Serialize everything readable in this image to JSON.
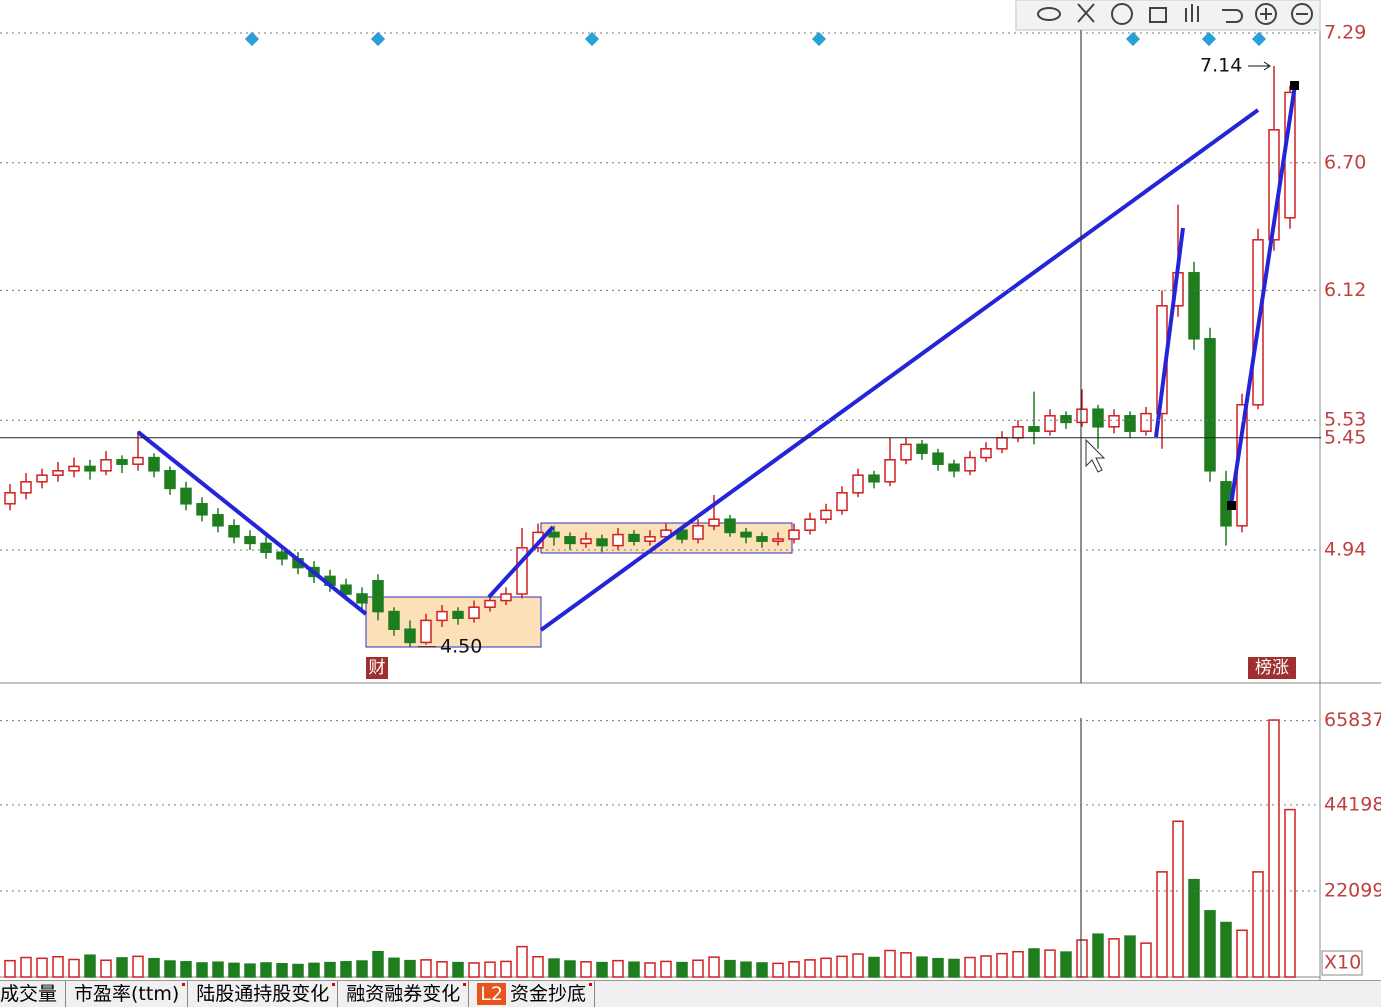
{
  "chart_data": {
    "type": "candlestick",
    "open": [
      5.15,
      5.2,
      5.25,
      5.28,
      5.3,
      5.32,
      5.3,
      5.35,
      5.33,
      5.36,
      5.3,
      5.22,
      5.15,
      5.1,
      5.05,
      5.0,
      4.97,
      4.93,
      4.9,
      4.86,
      4.82,
      4.78,
      4.74,
      4.8,
      4.66,
      4.58,
      4.52,
      4.62,
      4.66,
      4.63,
      4.68,
      4.71,
      4.74,
      4.95,
      5.02,
      5.0,
      4.97,
      4.99,
      4.96,
      5.01,
      4.98,
      5.0,
      5.03,
      4.99,
      5.05,
      5.08,
      5.02,
      5.0,
      4.98,
      4.99,
      5.03,
      5.08,
      5.12,
      5.2,
      5.28,
      5.25,
      5.35,
      5.42,
      5.38,
      5.33,
      5.3,
      5.36,
      5.4,
      5.45,
      5.5,
      5.48,
      5.55,
      5.52,
      5.58,
      5.5,
      5.55,
      5.48,
      5.56,
      6.05,
      6.2,
      5.9,
      5.25,
      5.05,
      5.6,
      6.35,
      6.45
    ],
    "high": [
      5.24,
      5.29,
      5.31,
      5.34,
      5.36,
      5.35,
      5.39,
      5.37,
      5.48,
      5.38,
      5.32,
      5.25,
      5.18,
      5.13,
      5.08,
      5.03,
      5.0,
      4.96,
      4.93,
      4.89,
      4.85,
      4.81,
      4.77,
      4.83,
      4.68,
      4.62,
      4.65,
      4.69,
      4.68,
      4.71,
      4.74,
      4.77,
      5.04,
      5.06,
      5.05,
      5.02,
      5.02,
      5.01,
      5.04,
      5.03,
      5.03,
      5.06,
      5.05,
      5.08,
      5.19,
      5.1,
      5.04,
      5.02,
      5.02,
      5.06,
      5.11,
      5.15,
      5.23,
      5.31,
      5.3,
      5.45,
      5.45,
      5.44,
      5.4,
      5.35,
      5.39,
      5.43,
      5.48,
      5.53,
      5.66,
      5.58,
      5.57,
      5.67,
      5.6,
      5.58,
      5.57,
      5.59,
      6.12,
      6.51,
      6.25,
      5.95,
      5.3,
      5.65,
      6.4,
      7.14,
      7.05
    ],
    "low": [
      5.12,
      5.17,
      5.22,
      5.25,
      5.27,
      5.26,
      5.28,
      5.29,
      5.3,
      5.27,
      5.19,
      5.12,
      5.07,
      5.02,
      4.97,
      4.94,
      4.9,
      4.87,
      4.83,
      4.79,
      4.75,
      4.71,
      4.67,
      4.62,
      4.55,
      4.5,
      4.51,
      4.59,
      4.6,
      4.61,
      4.66,
      4.69,
      4.72,
      4.93,
      4.96,
      4.94,
      4.95,
      4.93,
      4.94,
      4.96,
      4.96,
      4.98,
      4.97,
      4.97,
      5.03,
      5.0,
      4.97,
      4.95,
      4.96,
      4.97,
      5.01,
      5.06,
      5.1,
      5.18,
      5.22,
      5.23,
      5.33,
      5.35,
      5.3,
      5.27,
      5.28,
      5.34,
      5.38,
      5.43,
      5.42,
      5.46,
      5.49,
      5.5,
      5.4,
      5.47,
      5.45,
      5.46,
      5.4,
      6.0,
      5.85,
      5.25,
      4.96,
      5.02,
      5.58,
      6.3,
      6.4
    ],
    "close": [
      5.2,
      5.25,
      5.28,
      5.3,
      5.32,
      5.3,
      5.35,
      5.33,
      5.36,
      5.3,
      5.22,
      5.15,
      5.1,
      5.05,
      5.0,
      4.97,
      4.93,
      4.9,
      4.86,
      4.82,
      4.78,
      4.74,
      4.7,
      4.66,
      4.58,
      4.52,
      4.62,
      4.66,
      4.63,
      4.68,
      4.71,
      4.74,
      4.95,
      5.02,
      5.0,
      4.97,
      4.99,
      4.96,
      5.01,
      4.98,
      5.0,
      5.03,
      4.99,
      5.05,
      5.08,
      5.02,
      5.0,
      4.98,
      4.99,
      5.03,
      5.08,
      5.12,
      5.2,
      5.28,
      5.25,
      5.35,
      5.42,
      5.38,
      5.33,
      5.3,
      5.36,
      5.4,
      5.45,
      5.5,
      5.48,
      5.55,
      5.52,
      5.58,
      5.5,
      5.55,
      5.48,
      5.56,
      6.05,
      6.2,
      5.9,
      5.3,
      5.05,
      5.6,
      6.35,
      6.85,
      7.02
    ],
    "volume": [
      4200,
      5000,
      4800,
      5200,
      4500,
      5600,
      4300,
      4900,
      5300,
      4700,
      4100,
      3900,
      3600,
      3800,
      3500,
      3300,
      3600,
      3400,
      3200,
      3500,
      3700,
      3900,
      4100,
      6500,
      4800,
      4200,
      4400,
      3900,
      3700,
      3600,
      3800,
      4000,
      7800,
      5200,
      4600,
      4100,
      3900,
      3700,
      4200,
      3800,
      3600,
      4000,
      3700,
      4300,
      5100,
      4200,
      3800,
      3600,
      3500,
      3900,
      4400,
      4800,
      5300,
      5900,
      5000,
      6800,
      6200,
      5100,
      4700,
      4500,
      5000,
      5400,
      6000,
      6500,
      7200,
      6900,
      6400,
      9500,
      11000,
      9800,
      10500,
      8700,
      27000,
      40000,
      25000,
      17000,
      14000,
      12000,
      27000,
      66000,
      43000
    ],
    "ylim": [
      4.34,
      7.44
    ],
    "yticks": [
      7.29,
      {
        "value": 6.7,
        "label": "6.70"
      },
      6.12,
      5.53,
      4.94
    ],
    "volume_ylim": [
      0,
      75000
    ],
    "volume_yticks": [
      65837,
      44198,
      22099
    ],
    "volume_unit_label": "X10",
    "crosshair_price": 5.45,
    "high_label": 7.14,
    "low_label": {
      "value": 4.5,
      "label": "4.50"
    },
    "event_marker": "财",
    "limit_marker": "榜涨",
    "rise_color": "#d02020",
    "fall_color": "#1e7d1e",
    "tabs": [
      "成交量",
      "市盈率(ttm)",
      "陆股通持股变化",
      "融资融券变化",
      "L2",
      "资金抄底"
    ]
  }
}
